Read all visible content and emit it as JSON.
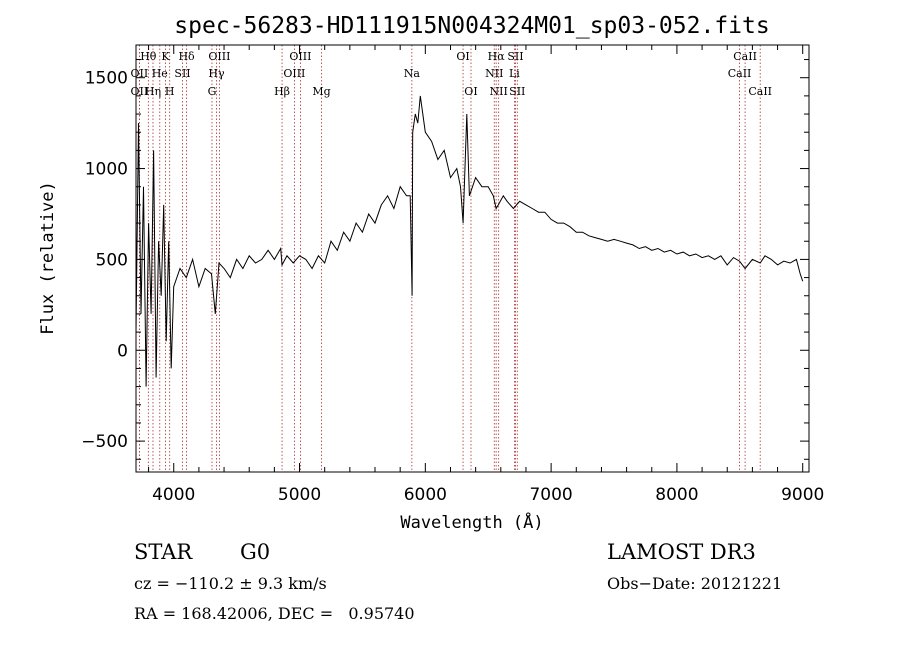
{
  "chart_data": {
    "type": "line",
    "title": "spec-56283-HD111915N004324M01_sp03-052.fits",
    "xlabel": "Wavelength (Å)",
    "ylabel": "Flux (relative)",
    "xlim": [
      3700,
      9050
    ],
    "ylim": [
      -670,
      1680
    ],
    "x_ticks": [
      4000,
      5000,
      6000,
      7000,
      8000,
      9000
    ],
    "y_ticks": [
      -500,
      0,
      500,
      1000,
      1500
    ],
    "grid": false,
    "legend": "none",
    "line_color": "#000000",
    "marker_color": "#b03030",
    "series": [
      {
        "x": [
          3700,
          3720,
          3740,
          3760,
          3780,
          3800,
          3820,
          3840,
          3860,
          3880,
          3900,
          3920,
          3940,
          3960,
          3980,
          4000,
          4050,
          4100,
          4150,
          4200,
          4250,
          4300,
          4330,
          4360,
          4400,
          4450,
          4500,
          4550,
          4600,
          4650,
          4700,
          4750,
          4800,
          4850,
          4861,
          4900,
          4950,
          5000,
          5050,
          5100,
          5150,
          5200,
          5250,
          5300,
          5350,
          5400,
          5450,
          5500,
          5550,
          5600,
          5650,
          5700,
          5750,
          5800,
          5850,
          5880,
          5895,
          5900,
          5920,
          5940,
          5960,
          5980,
          6000,
          6050,
          6100,
          6150,
          6200,
          6250,
          6280,
          6300,
          6330,
          6350,
          6400,
          6450,
          6500,
          6540,
          6563,
          6580,
          6620,
          6650,
          6700,
          6750,
          6800,
          6850,
          6900,
          6950,
          7000,
          7050,
          7100,
          7150,
          7200,
          7250,
          7300,
          7350,
          7400,
          7450,
          7500,
          7550,
          7600,
          7650,
          7700,
          7750,
          7800,
          7850,
          7900,
          7950,
          8000,
          8050,
          8100,
          8150,
          8200,
          8250,
          8300,
          8350,
          8400,
          8450,
          8498,
          8542,
          8600,
          8662,
          8700,
          8750,
          8800,
          8850,
          8900,
          8950,
          8980,
          9000
        ],
        "y": [
          100,
          1250,
          200,
          900,
          -200,
          700,
          200,
          1100,
          -150,
          600,
          300,
          800,
          50,
          600,
          -100,
          350,
          450,
          400,
          500,
          350,
          450,
          420,
          200,
          480,
          450,
          400,
          500,
          450,
          520,
          480,
          500,
          550,
          500,
          560,
          470,
          520,
          480,
          520,
          500,
          450,
          520,
          480,
          600,
          550,
          650,
          600,
          700,
          650,
          750,
          700,
          800,
          850,
          780,
          900,
          850,
          850,
          300,
          1200,
          1300,
          1250,
          1400,
          1300,
          1200,
          1150,
          1050,
          1100,
          950,
          1000,
          900,
          700,
          1300,
          850,
          950,
          900,
          900,
          850,
          780,
          800,
          850,
          820,
          780,
          820,
          800,
          780,
          760,
          760,
          720,
          700,
          700,
          680,
          650,
          650,
          630,
          620,
          610,
          600,
          610,
          600,
          590,
          580,
          560,
          570,
          550,
          560,
          540,
          550,
          530,
          540,
          520,
          530,
          510,
          520,
          500,
          520,
          470,
          510,
          490,
          450,
          500,
          480,
          520,
          500,
          470,
          490,
          480,
          500,
          420,
          380
        ]
      }
    ],
    "line_labels": [
      {
        "text": "Hθ",
        "x": 3798,
        "row": 0
      },
      {
        "text": "K",
        "x": 3934,
        "row": 0
      },
      {
        "text": "Hδ",
        "x": 4102,
        "row": 0
      },
      {
        "text": "OIII",
        "x": 4363,
        "row": 0
      },
      {
        "text": "OIII",
        "x": 5007,
        "row": 0
      },
      {
        "text": "OI",
        "x": 6300,
        "row": 0
      },
      {
        "text": "Hα",
        "x": 6563,
        "row": 0
      },
      {
        "text": "SII",
        "x": 6717,
        "row": 0
      },
      {
        "text": "CaII",
        "x": 8542,
        "row": 0
      },
      {
        "text": "OII",
        "x": 3727,
        "row": 1
      },
      {
        "text": "He",
        "x": 3889,
        "row": 1
      },
      {
        "text": "SII",
        "x": 4070,
        "row": 1
      },
      {
        "text": "Hγ",
        "x": 4340,
        "row": 1
      },
      {
        "text": "OIII",
        "x": 4959,
        "row": 1
      },
      {
        "text": "Na",
        "x": 5893,
        "row": 1
      },
      {
        "text": "NII",
        "x": 6548,
        "row": 1
      },
      {
        "text": "Li",
        "x": 6708,
        "row": 1
      },
      {
        "text": "CaII",
        "x": 8498,
        "row": 1
      },
      {
        "text": "OII",
        "x": 3727,
        "row": 2
      },
      {
        "text": "Hη",
        "x": 3835,
        "row": 2
      },
      {
        "text": "H",
        "x": 3968,
        "row": 2
      },
      {
        "text": "G",
        "x": 4304,
        "row": 2
      },
      {
        "text": "Hβ",
        "x": 4861,
        "row": 2
      },
      {
        "text": "Mg",
        "x": 5175,
        "row": 2
      },
      {
        "text": "OI",
        "x": 6363,
        "row": 2
      },
      {
        "text": "NII",
        "x": 6583,
        "row": 2
      },
      {
        "text": "SII",
        "x": 6731,
        "row": 2
      },
      {
        "text": "CaII",
        "x": 8662,
        "row": 2
      }
    ]
  },
  "info": {
    "object_class": "STAR",
    "subclass": "G0",
    "survey": "LAMOST DR3",
    "cz": "cz = −110.2 ± 9.3 km/s",
    "obs_date": "Obs−Date: 20121221",
    "coords": "RA = 168.42006, DEC =   0.95740"
  }
}
